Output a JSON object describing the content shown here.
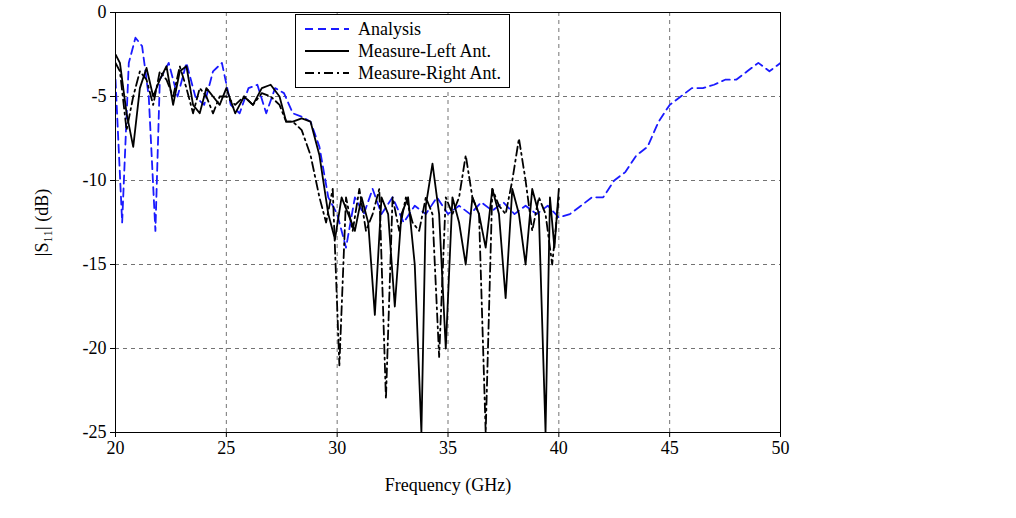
{
  "chart_data": {
    "type": "line",
    "x_label": "Frequency (GHz)",
    "y_label": "|S₁₁| (dB)",
    "xlim": [
      20,
      50
    ],
    "ylim": [
      -25,
      0
    ],
    "xticks": [
      20,
      25,
      30,
      35,
      40,
      45,
      50
    ],
    "yticks": [
      -25,
      -20,
      -15,
      -10,
      -5,
      0
    ],
    "grid": true,
    "legend": "top",
    "series": [
      {
        "name": "Analysis",
        "color": "#1a1aff",
        "line_style": "dashed",
        "x": [
          20,
          20.3,
          20.6,
          20.9,
          21.2,
          21.5,
          21.8,
          22,
          22.4,
          22.8,
          23.2,
          23.6,
          24,
          24.4,
          24.8,
          25.2,
          25.6,
          26,
          26.4,
          26.8,
          27.2,
          27.6,
          28,
          28.4,
          28.8,
          29.2,
          29.6,
          30,
          30.4,
          30.8,
          31.2,
          31.6,
          32,
          32.5,
          33,
          33.5,
          34,
          34.5,
          35,
          35.5,
          36,
          36.5,
          37,
          37.5,
          38,
          38.5,
          39,
          39.5,
          40,
          40.5,
          41,
          41.5,
          42,
          42.5,
          43,
          43.5,
          44,
          44.5,
          45,
          45.5,
          46,
          46.5,
          47,
          47.5,
          48,
          48.5,
          49,
          49.5,
          50
        ],
        "values": [
          -4,
          -12.5,
          -3,
          -1.5,
          -2,
          -5,
          -13,
          -4,
          -3,
          -5,
          -3,
          -5,
          -5.5,
          -3.5,
          -3,
          -5.5,
          -6,
          -4.5,
          -4.3,
          -6,
          -4.5,
          -4.8,
          -6,
          -6.2,
          -6.5,
          -8,
          -11,
          -12,
          -14,
          -11,
          -12,
          -10.5,
          -12,
          -11,
          -12.5,
          -11.5,
          -12,
          -11,
          -12,
          -11.5,
          -12,
          -11.3,
          -11.8,
          -11.3,
          -12,
          -11.5,
          -12,
          -11.5,
          -12.2,
          -12,
          -11.5,
          -11,
          -11,
          -10,
          -9.5,
          -8.5,
          -8,
          -6.5,
          -5.5,
          -5,
          -4.5,
          -4.5,
          -4.3,
          -4,
          -4,
          -3.5,
          -3,
          -3.5,
          -3
        ]
      },
      {
        "name": "Measure-Left Ant.",
        "color": "#000000",
        "line_style": "solid",
        "x": [
          20,
          20.2,
          20.5,
          20.8,
          21.1,
          21.4,
          21.7,
          22,
          22.3,
          22.6,
          22.9,
          23.2,
          23.5,
          23.8,
          24.1,
          24.4,
          24.7,
          25,
          25.4,
          25.8,
          26.2,
          26.6,
          27,
          27.4,
          27.7,
          28,
          28.4,
          28.8,
          29.2,
          29.6,
          29.9,
          30.2,
          30.5,
          30.8,
          31.1,
          31.4,
          31.7,
          32,
          32.3,
          32.6,
          32.9,
          33.2,
          33.5,
          33.8,
          34,
          34.3,
          34.6,
          34.9,
          35.2,
          35.5,
          35.8,
          36.1,
          36.4,
          36.7,
          37,
          37.3,
          37.6,
          37.9,
          38.2,
          38.5,
          38.8,
          39.1,
          39.4,
          39.6,
          39.8,
          40
        ],
        "values": [
          -2.5,
          -3,
          -6,
          -8,
          -4.5,
          -3.3,
          -5,
          -4,
          -3.2,
          -5.5,
          -3.5,
          -3.2,
          -5.5,
          -6,
          -4.5,
          -5,
          -5.5,
          -4.5,
          -6,
          -5,
          -5.5,
          -4.5,
          -4.3,
          -5,
          -6.5,
          -6.5,
          -6.3,
          -6.5,
          -8.5,
          -12,
          -13.5,
          -11,
          -12,
          -13,
          -11,
          -12.5,
          -18,
          -11,
          -12,
          -17.5,
          -12,
          -11,
          -15,
          -25,
          -11.5,
          -9,
          -12,
          -20,
          -11,
          -12.5,
          -15,
          -11,
          -12,
          -14,
          -10.5,
          -12,
          -17,
          -10.5,
          -12,
          -15,
          -10.5,
          -12,
          -25,
          -11,
          -14,
          -10.5
        ]
      },
      {
        "name": "Measure-Right Ant.",
        "color": "#000000",
        "line_style": "dashdot",
        "x": [
          20,
          20.2,
          20.5,
          20.8,
          21.1,
          21.4,
          21.7,
          22,
          22.3,
          22.6,
          22.9,
          23.2,
          23.5,
          23.8,
          24.1,
          24.4,
          24.7,
          25,
          25.4,
          25.8,
          26.2,
          26.6,
          27,
          27.4,
          27.7,
          28,
          28.4,
          28.8,
          29.2,
          29.5,
          29.8,
          30.1,
          30.4,
          30.7,
          31,
          31.3,
          31.6,
          31.9,
          32.2,
          32.5,
          32.8,
          33.1,
          33.4,
          33.7,
          34,
          34.3,
          34.6,
          34.9,
          35.2,
          35.5,
          35.8,
          36.1,
          36.4,
          36.7,
          37,
          37.3,
          37.6,
          37.9,
          38.2,
          38.5,
          38.8,
          39.1,
          39.4,
          39.7,
          40
        ],
        "values": [
          -3,
          -3.5,
          -7,
          -5,
          -3.5,
          -4,
          -5.5,
          -3.5,
          -4,
          -5,
          -3.2,
          -4.5,
          -6,
          -4.5,
          -5,
          -6,
          -5,
          -5,
          -5.5,
          -5,
          -5.5,
          -4.8,
          -5,
          -5.5,
          -6.5,
          -6.5,
          -7,
          -8.5,
          -11,
          -12.5,
          -10.5,
          -21,
          -11,
          -13,
          -10.5,
          -13,
          -12,
          -10.5,
          -23,
          -11,
          -13,
          -11,
          -12.5,
          -13,
          -11,
          -12,
          -20.5,
          -11,
          -12,
          -11,
          -8.5,
          -11,
          -12,
          -25,
          -10.5,
          -11.5,
          -12,
          -10,
          -7.5,
          -10,
          -13,
          -11,
          -12,
          -15,
          -11
        ]
      }
    ]
  }
}
